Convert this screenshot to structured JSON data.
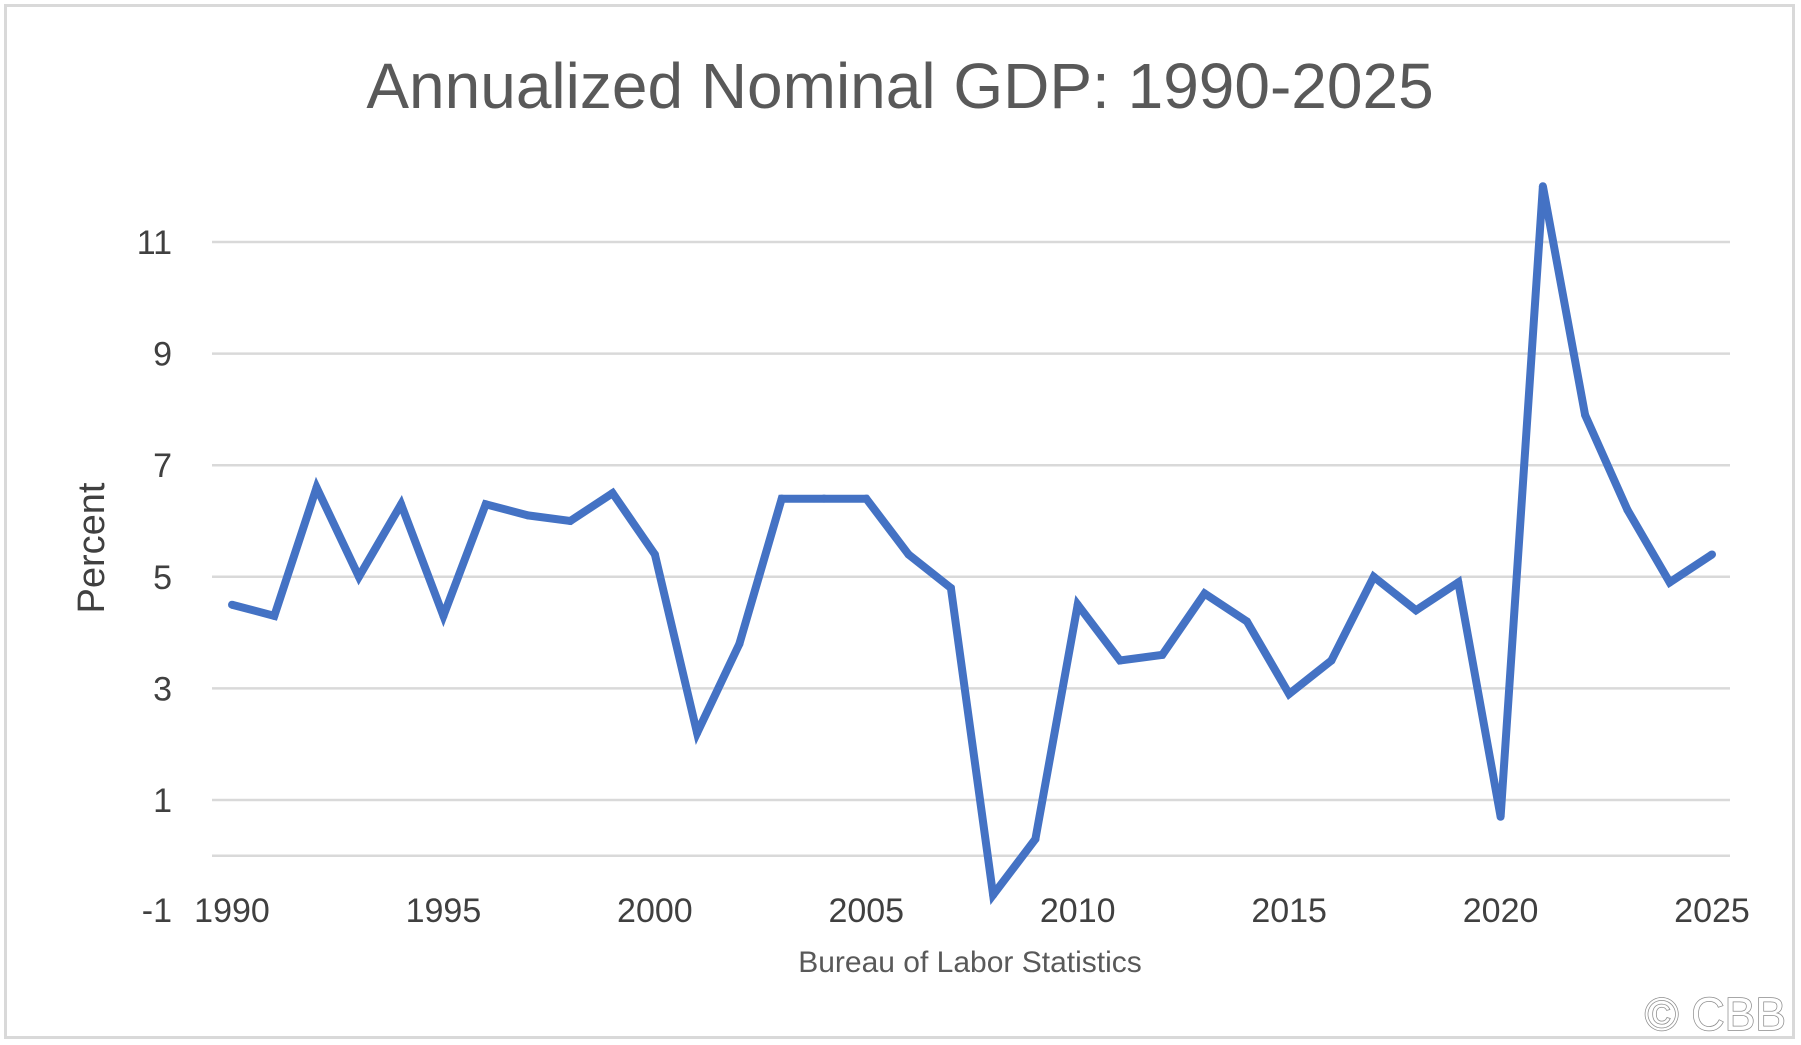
{
  "chart_data": {
    "type": "line",
    "title": "Annualized Nominal GDP: 1990-2025",
    "xlabel": "Bureau of Labor Statistics",
    "ylabel": "Percent",
    "ylim": [
      -1,
      12
    ],
    "xlim": [
      1990,
      2025
    ],
    "yticks": [
      -1,
      1,
      3,
      5,
      7,
      9,
      11
    ],
    "xticks": [
      1990,
      1995,
      2000,
      2005,
      2010,
      2015,
      2020,
      2025
    ],
    "grid": true,
    "legend": "none",
    "colors": {
      "series": "#4472c4",
      "grid": "#d9d9d9"
    },
    "series": [
      {
        "x": [
          1990,
          1991,
          1992,
          1993,
          1994,
          1995,
          1996,
          1997,
          1998,
          1999,
          2000,
          2001,
          2002,
          2003,
          2004,
          2005,
          2006,
          2007,
          2008,
          2009,
          2010,
          2011,
          2012,
          2013,
          2014,
          2015,
          2016,
          2017,
          2018,
          2019,
          2020,
          2021,
          2022,
          2023,
          2024,
          2025
        ],
        "values": [
          4.5,
          4.3,
          6.6,
          5.0,
          6.3,
          4.3,
          6.3,
          6.1,
          6.0,
          6.5,
          5.4,
          2.2,
          3.8,
          6.4,
          6.4,
          6.4,
          5.4,
          4.8,
          -0.7,
          0.3,
          4.5,
          3.5,
          3.6,
          4.7,
          4.2,
          2.9,
          3.5,
          5.0,
          4.4,
          4.9,
          0.7,
          12.0,
          7.9,
          6.2,
          4.9,
          5.4
        ]
      }
    ]
  },
  "watermark": "© CBB"
}
